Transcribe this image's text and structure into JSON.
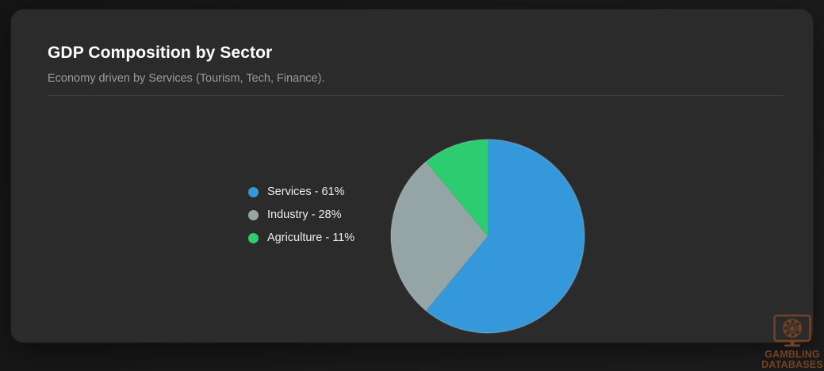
{
  "card": {
    "title": "GDP Composition by Sector",
    "subtitle": "Economy driven by Services (Tourism, Tech, Finance)."
  },
  "chart_data": {
    "type": "pie",
    "title": "GDP Composition by Sector",
    "start_angle_deg": -90,
    "direction": "clockwise",
    "legend_position": "left",
    "slices": [
      {
        "name": "Services",
        "value": 61,
        "label": "Services - 61%",
        "color": "#3498db"
      },
      {
        "name": "Industry",
        "value": 28,
        "label": "Industry - 28%",
        "color": "#95a5a6"
      },
      {
        "name": "Agriculture",
        "value": 11,
        "label": "Agriculture - 11%",
        "color": "#2ecc71"
      }
    ]
  },
  "watermark": {
    "line1": "GAMBLING",
    "line2": "DATABASES",
    "icon": "monitor-casino-chip-icon",
    "color": "#7a4523"
  },
  "colors": {
    "page_bg_a": "#151515",
    "page_bg_b": "#1d1d1d",
    "card_bg": "#2b2b2b",
    "title": "#ffffff",
    "subtitle": "#9b9b9b",
    "divider": "#3e3e3e",
    "legend_text": "#ececec",
    "watermark": "#7a4523"
  }
}
